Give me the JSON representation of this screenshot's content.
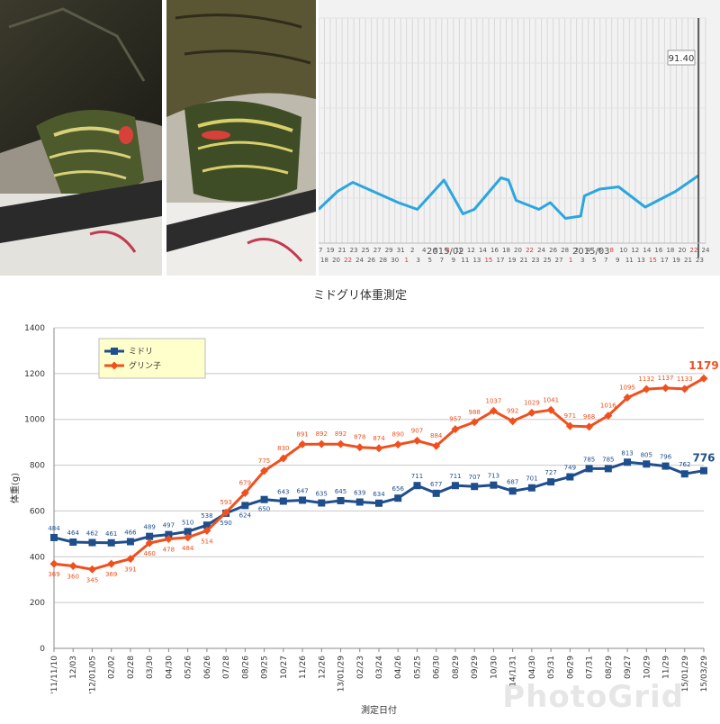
{
  "photos": [
    {
      "subject": "red-eared slider turtle"
    },
    {
      "subject": "red-eared slider turtle"
    }
  ],
  "tracker": {
    "value_label": "91.40",
    "months": [
      "2015/02",
      "2015/03"
    ],
    "day_ticks": [
      "17",
      "18",
      "19",
      "20",
      "21",
      "22",
      "23",
      "24",
      "25",
      "26",
      "27",
      "28",
      "29",
      "30",
      "31",
      "1",
      "2",
      "3",
      "4",
      "5",
      "6",
      "7",
      "8",
      "9",
      "10",
      "11",
      "12",
      "13",
      "14",
      "15",
      "16",
      "17",
      "18",
      "19",
      "20",
      "21",
      "22",
      "23",
      "24",
      "25",
      "26",
      "27",
      "28",
      "1",
      "2",
      "3",
      "4",
      "5",
      "6",
      "7",
      "8",
      "9",
      "10",
      "11",
      "12",
      "13",
      "14",
      "15",
      "16",
      "17",
      "18",
      "19",
      "20",
      "21",
      "22",
      "23",
      "24"
    ],
    "line_points": [
      [
        0.0,
        0.7
      ],
      [
        0.05,
        0.78
      ],
      [
        0.09,
        0.82
      ],
      [
        0.21,
        0.73
      ],
      [
        0.26,
        0.7
      ],
      [
        0.33,
        0.83
      ],
      [
        0.38,
        0.68
      ],
      [
        0.41,
        0.7
      ],
      [
        0.48,
        0.84
      ],
      [
        0.5,
        0.83
      ],
      [
        0.52,
        0.74
      ],
      [
        0.58,
        0.7
      ],
      [
        0.61,
        0.73
      ],
      [
        0.65,
        0.66
      ],
      [
        0.69,
        0.67
      ],
      [
        0.7,
        0.76
      ],
      [
        0.74,
        0.79
      ],
      [
        0.79,
        0.8
      ],
      [
        0.86,
        0.71
      ],
      [
        0.94,
        0.78
      ],
      [
        1.0,
        0.85
      ]
    ],
    "colors": {
      "line": "#2aa6e0",
      "cursor": "#333333",
      "background": "#f2f2f2"
    }
  },
  "chart_data": {
    "type": "line",
    "title": "ミドグリ体重測定",
    "xlabel": "測定日付",
    "ylabel": "体重(g)",
    "ylim": [
      0,
      1400
    ],
    "yticks": [
      0,
      200,
      400,
      600,
      800,
      1000,
      1200,
      1400
    ],
    "grid": true,
    "legend_position": "top-left",
    "categories": [
      "'11/11/10",
      "12/03",
      "'12/01/05",
      "02/02",
      "02/28",
      "03/30",
      "04/30",
      "05/26",
      "06/26",
      "07/28",
      "08/26",
      "09/25",
      "10/27",
      "11/26",
      "12/26",
      "13/01/29",
      "02/23",
      "03/24",
      "04/26",
      "05/25",
      "06/30",
      "08/29",
      "09/29",
      "10/30",
      "14/1/31",
      "04/30",
      "05/31",
      "06/29",
      "07/31",
      "08/29",
      "09/27",
      "10/29",
      "11/29",
      "15/01/29",
      "15/03/29"
    ],
    "series": [
      {
        "name": "ミドリ",
        "color": "#1f4e8c",
        "marker": "square",
        "values": [
          484,
          464,
          462,
          461,
          466,
          489,
          497,
          510,
          538,
          590,
          624,
          650,
          643,
          647,
          635,
          645,
          639,
          634,
          656,
          711,
          677,
          711,
          707,
          713,
          687,
          701,
          727,
          749,
          785,
          785,
          813,
          805,
          796,
          762,
          776
        ],
        "final_label": "776"
      },
      {
        "name": "グリン子",
        "color": "#f0501e",
        "marker": "diamond",
        "values": [
          369,
          360,
          345,
          369,
          391,
          460,
          478,
          484,
          514,
          593,
          679,
          775,
          830,
          891,
          892,
          892,
          878,
          874,
          890,
          907,
          884,
          957,
          988,
          1037,
          992,
          1029,
          1041,
          971,
          968,
          1016,
          1095,
          1132,
          1137,
          1133,
          1179
        ],
        "final_label": "1179"
      }
    ]
  },
  "watermark": "PhotoGrid"
}
